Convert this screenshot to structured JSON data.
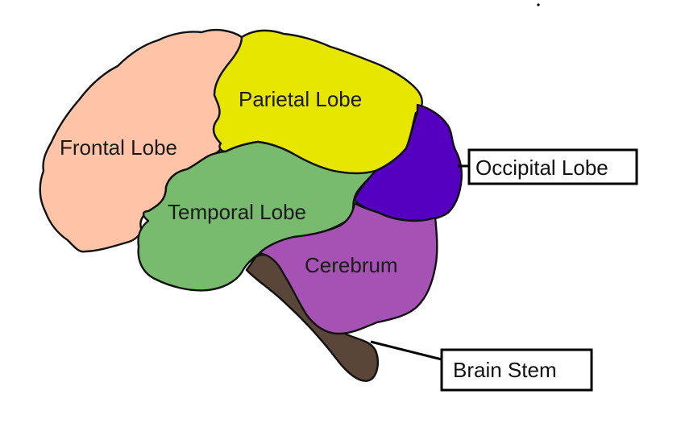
{
  "diagram": {
    "regions": {
      "frontal_lobe": {
        "label": "Frontal Lobe",
        "color": "#FFC4A8"
      },
      "parietal_lobe": {
        "label": "Parietal Lobe",
        "color": "#E6E600"
      },
      "temporal_lobe": {
        "label": "Temporal Lobe",
        "color": "#78BA6E"
      },
      "occipital_lobe": {
        "color": "#5500C0"
      },
      "cerebrum": {
        "label": "Cerebrum",
        "color": "#A652B4"
      },
      "brain_stem": {
        "color": "#5A4638"
      }
    },
    "callouts": {
      "occipital_lobe": "Occipital Lobe",
      "brain_stem": "Brain Stem"
    }
  }
}
